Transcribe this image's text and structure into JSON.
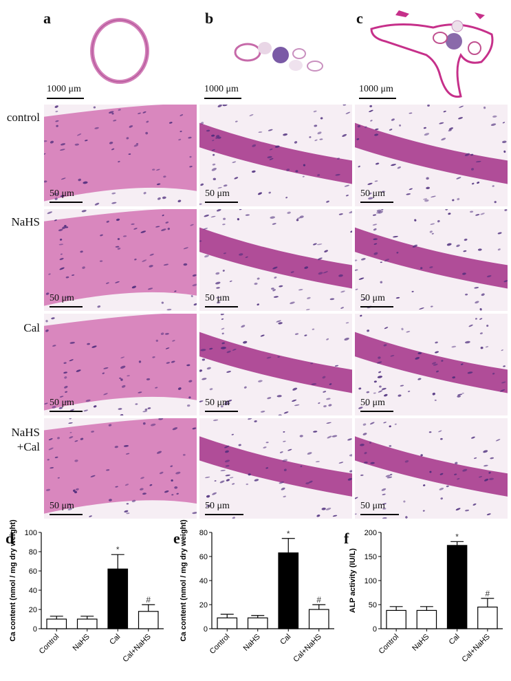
{
  "panels": {
    "a": "a",
    "b": "b",
    "c": "c",
    "d": "d",
    "e": "e",
    "f": "f"
  },
  "row_labels": {
    "control": "control",
    "nahs": "NaHS",
    "cal": "Cal",
    "nahs_cal_line1": "NaHS",
    "nahs_cal_line2": "+Cal"
  },
  "scalebars": {
    "overview": "1000 μm",
    "detail": "50 μm"
  },
  "colors": {
    "tissue_bg": "#f6eef4",
    "tissue_pink": "#d987be",
    "tissue_deep": "#b04d98",
    "nucleus": "#4a2a7a",
    "bar_filled": "#000000",
    "bar_empty": "#ffffff"
  },
  "chart_data": [
    {
      "id": "d",
      "type": "bar",
      "ylabel": "Ca content (nmol / mg dry weight)",
      "ylim": [
        0,
        100
      ],
      "yticks": [
        "0",
        "20",
        "40",
        "60",
        "80",
        "100"
      ],
      "categories": [
        "Control",
        "NaHS",
        "Cal",
        "Cal+NaHS"
      ],
      "values": [
        10,
        10,
        62,
        18
      ],
      "errors": [
        3,
        3,
        15,
        7
      ],
      "filled": [
        false,
        false,
        true,
        false
      ],
      "annotations": [
        "",
        "",
        "*",
        "#"
      ]
    },
    {
      "id": "e",
      "type": "bar",
      "ylabel": "Ca content (nmol / mg dry weight)",
      "ylim": [
        0,
        80
      ],
      "yticks": [
        "0",
        "20",
        "40",
        "60",
        "80"
      ],
      "categories": [
        "Control",
        "NaHS",
        "Cal",
        "Cal+NaHS"
      ],
      "values": [
        9,
        9,
        63,
        16
      ],
      "errors": [
        3,
        2,
        12,
        4
      ],
      "filled": [
        false,
        false,
        true,
        false
      ],
      "annotations": [
        "",
        "",
        "*",
        "#"
      ]
    },
    {
      "id": "f",
      "type": "bar",
      "ylabel": "ALP activity (IU/L)",
      "ylim": [
        0,
        200
      ],
      "yticks": [
        "0",
        "50",
        "100",
        "150",
        "200"
      ],
      "categories": [
        "Control",
        "NaHS",
        "Cal",
        "Cal+NaHS"
      ],
      "values": [
        38,
        38,
        173,
        45
      ],
      "errors": [
        8,
        8,
        8,
        18
      ],
      "filled": [
        false,
        false,
        true,
        false
      ],
      "annotations": [
        "",
        "",
        "*",
        "#"
      ]
    }
  ]
}
